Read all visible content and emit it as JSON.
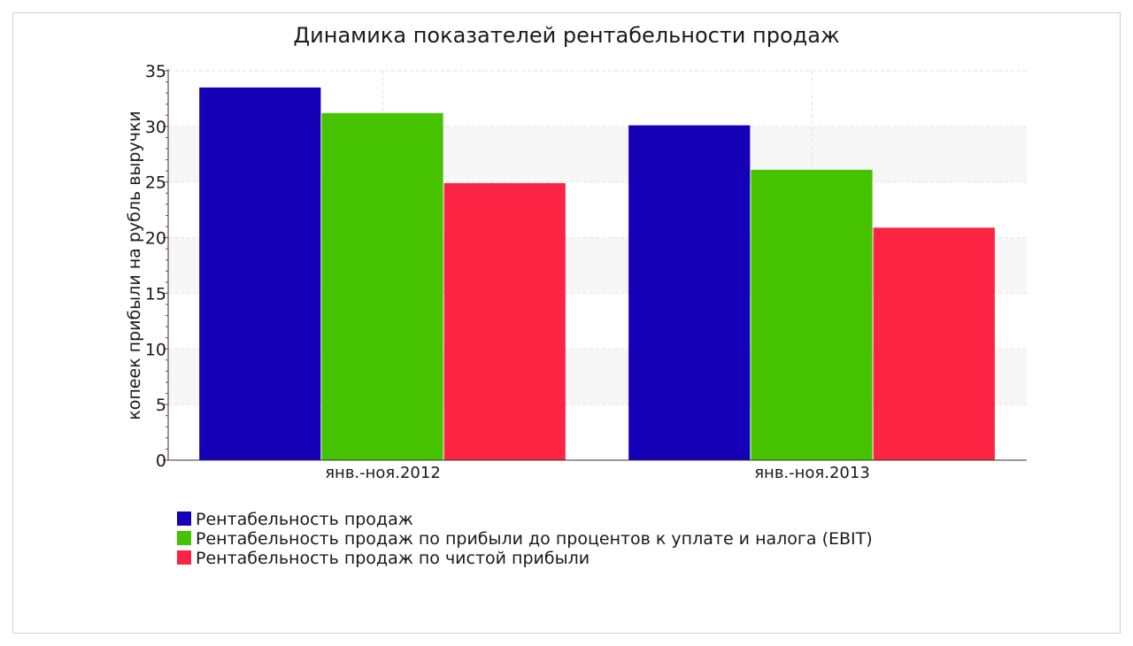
{
  "chart_data": {
    "type": "bar",
    "title": "Динамика показателей рентабельности продаж",
    "xlabel": "",
    "ylabel": "копеек прибыли на рубль выручки",
    "categories": [
      "янв.-ноя.2012",
      "янв.-ноя.2013"
    ],
    "series": [
      {
        "name": "Рентабельность продаж",
        "values": [
          33.5,
          30.1
        ],
        "color": "#1500b8"
      },
      {
        "name": "Рентабельность продаж по прибыли до процентов к уплате и налога (EBIT)",
        "values": [
          31.2,
          26.1
        ],
        "color": "#46c300"
      },
      {
        "name": "Рентабельность продаж по чистой прибыли",
        "values": [
          24.9,
          20.9
        ],
        "color": "#fb2442"
      }
    ],
    "ylim": [
      0,
      35
    ],
    "yticks": [
      0,
      5,
      10,
      15,
      20,
      25,
      30,
      35
    ],
    "grid": true,
    "legend_position": "bottom-left"
  }
}
